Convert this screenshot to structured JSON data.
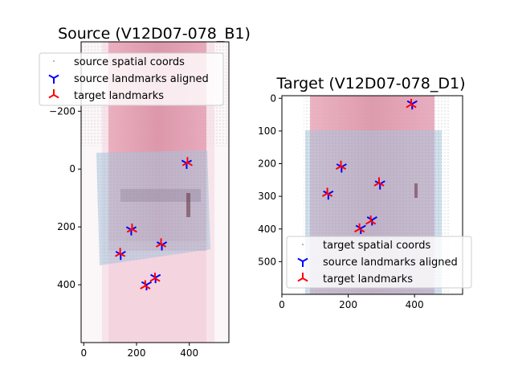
{
  "chart_data": [
    {
      "type": "scatter",
      "title": "Source (V12D07-078_B1)",
      "xlabel": "",
      "ylabel": "",
      "xlim": [
        -10,
        550
      ],
      "ylim": [
        600,
        -440
      ],
      "y_inverted": true,
      "x_ticks": [
        0,
        200,
        400
      ],
      "y_ticks": [
        -200,
        0,
        200,
        400
      ],
      "legend_position": "upper-left",
      "legend": [
        {
          "label": "source spatial coords",
          "marker": "dot",
          "color": "#a0a0a0"
        },
        {
          "label": "source landmarks aligned",
          "marker": "tri_down",
          "color": "#0000ff"
        },
        {
          "label": "target landmarks",
          "marker": "tri_up",
          "color": "#ff0000"
        }
      ],
      "series": [
        {
          "name": "source landmarks aligned",
          "color": "#0000ff",
          "points": [
            [
              390,
              -20
            ],
            [
              180,
              210
            ],
            [
              296,
              262
            ],
            [
              140,
              295
            ],
            [
              272,
              375
            ],
            [
              238,
              400
            ]
          ]
        },
        {
          "name": "target landmarks",
          "color": "#ff0000",
          "points": [
            [
              393,
              -22
            ],
            [
              183,
              208
            ],
            [
              293,
              259
            ],
            [
              138,
              292
            ],
            [
              270,
              378
            ],
            [
              233,
              404
            ]
          ]
        }
      ]
    },
    {
      "type": "scatter",
      "title": "Target (V12D07-078_D1)",
      "xlabel": "",
      "ylabel": "",
      "xlim": [
        0,
        545
      ],
      "ylim": [
        600,
        -8
      ],
      "y_inverted": true,
      "x_ticks": [
        0,
        200,
        400
      ],
      "y_ticks": [
        0,
        100,
        200,
        300,
        400,
        500
      ],
      "legend_position": "lower-right",
      "legend": [
        {
          "label": "target spatial coords",
          "marker": "dot",
          "color": "#a0a0a0"
        },
        {
          "label": "source landmarks aligned",
          "marker": "tri_down",
          "color": "#0000ff"
        },
        {
          "label": "target landmarks",
          "marker": "tri_up",
          "color": "#ff0000"
        }
      ],
      "series": [
        {
          "name": "source landmarks aligned",
          "color": "#0000ff",
          "points": [
            [
              393,
              17
            ],
            [
              180,
              210
            ],
            [
              296,
              262
            ],
            [
              140,
              293
            ],
            [
              272,
              372
            ],
            [
              238,
              398
            ]
          ]
        },
        {
          "name": "target landmarks",
          "color": "#ff0000",
          "points": [
            [
              390,
              19
            ],
            [
              178,
              208
            ],
            [
              293,
              259
            ],
            [
              137,
              291
            ],
            [
              268,
              376
            ],
            [
              234,
              400
            ]
          ]
        }
      ]
    }
  ]
}
